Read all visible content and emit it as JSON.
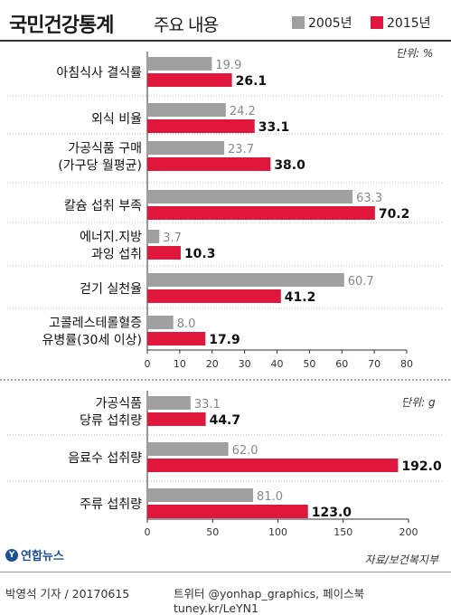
{
  "header": {
    "title": "국민건강통계",
    "subtitle": "주요 내용"
  },
  "legend": [
    {
      "label": "2005년",
      "color": "#a0a0a0"
    },
    {
      "label": "2015년",
      "color": "#e0173c"
    }
  ],
  "chart_data": [
    {
      "type": "bar",
      "orientation": "horizontal",
      "unit_label": "단위: %",
      "categories": [
        [
          "아침식사 결식률"
        ],
        [
          "외식 비율"
        ],
        [
          "가공식품 구매",
          "(가구당 월평균)"
        ],
        [
          "칼슘 섭취 부족"
        ],
        [
          "에너지.지방",
          "과잉 섭취"
        ],
        [
          "걷기 실천율"
        ],
        [
          "고콜레스테롤혈증",
          "유병률(30세 이상)"
        ]
      ],
      "series": [
        {
          "name": "2005년",
          "values": [
            19.9,
            24.2,
            23.7,
            63.3,
            3.7,
            60.7,
            8.0
          ]
        },
        {
          "name": "2015년",
          "values": [
            26.1,
            33.1,
            38.0,
            70.2,
            10.3,
            41.2,
            17.9
          ]
        }
      ],
      "value_labels": {
        "2005년": [
          "19.9",
          "24.2",
          "23.7",
          "63.3",
          "3.7",
          "60.7",
          "8.0"
        ],
        "2015년": [
          "26.1",
          "33.1",
          "38.0",
          "70.2",
          "10.3",
          "41.2",
          "17.9"
        ]
      },
      "xlim": [
        0,
        80
      ],
      "ticks": [
        "0",
        "10",
        "20",
        "30",
        "40",
        "50",
        "60",
        "70",
        "80"
      ],
      "grid": false
    },
    {
      "type": "bar",
      "orientation": "horizontal",
      "unit_label": "단위: g",
      "categories": [
        [
          "가공식품",
          "당류 섭취량"
        ],
        [
          "음료수 섭취량"
        ],
        [
          "주류 섭취량"
        ]
      ],
      "series": [
        {
          "name": "2005년",
          "values": [
            33.1,
            62.0,
            81.0
          ]
        },
        {
          "name": "2015년",
          "values": [
            44.7,
            192.0,
            123.0
          ]
        }
      ],
      "value_labels": {
        "2005년": [
          "33.1",
          "62.0",
          "81.0"
        ],
        "2015년": [
          "44.7",
          "192.0",
          "123.0"
        ]
      },
      "xlim": [
        0,
        200
      ],
      "ticks": [
        "0",
        "50",
        "100",
        "150",
        "200"
      ],
      "grid": false
    }
  ],
  "source": "자료/보건복지부",
  "logo": {
    "text": "연합뉴스",
    "mark": "Y"
  },
  "footer": {
    "reporter": "박영석 기자 / 20170615",
    "social": "트위터 @yonhap_graphics, 페이스북 tuney.kr/LeYN1"
  }
}
